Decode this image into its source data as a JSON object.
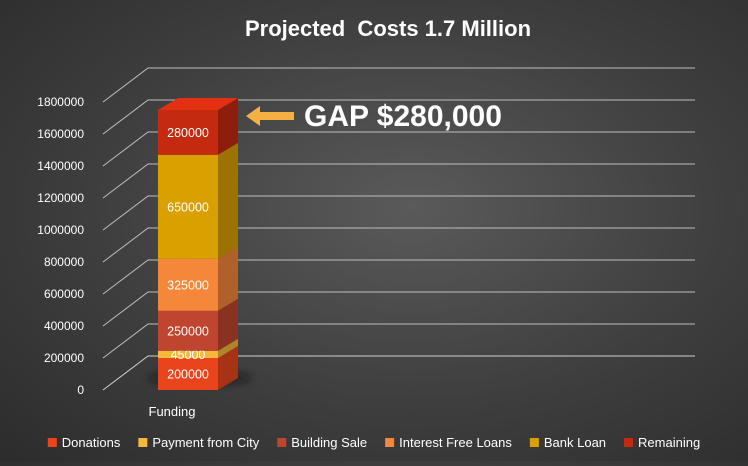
{
  "chart_data": {
    "type": "bar",
    "stacked": true,
    "three_d": true,
    "title": "Projected  Costs 1.7 Million",
    "categories": [
      "Funding"
    ],
    "ylim": [
      0,
      1800000
    ],
    "yticks": [
      0,
      200000,
      400000,
      600000,
      800000,
      1000000,
      1200000,
      1400000,
      1600000,
      1800000
    ],
    "grid": true,
    "legend_position": "bottom",
    "series": [
      {
        "name": "Donations",
        "values": [
          200000
        ],
        "color": "#e8451c"
      },
      {
        "name": "Payment from City",
        "values": [
          45000
        ],
        "color": "#f5b93a"
      },
      {
        "name": "Building Sale",
        "values": [
          250000
        ],
        "color": "#c0452e"
      },
      {
        "name": "Interest Free Loans",
        "values": [
          325000
        ],
        "color": "#f5873a"
      },
      {
        "name": "Bank Loan",
        "values": [
          650000
        ],
        "color": "#d9a000"
      },
      {
        "name": "Remaining",
        "values": [
          280000
        ],
        "color": "#c42a10"
      }
    ],
    "annotation": {
      "text": "GAP $280,000",
      "arrow_color": "#f5b041"
    }
  }
}
